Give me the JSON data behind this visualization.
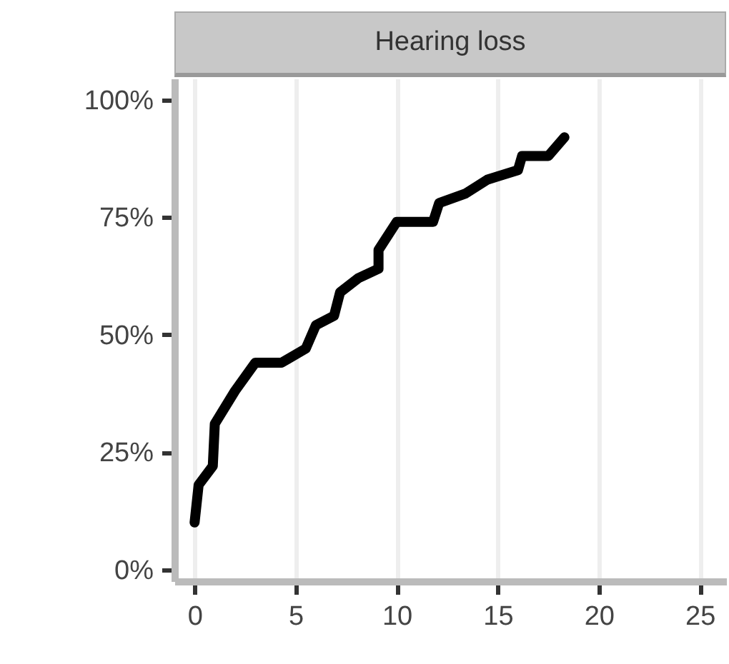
{
  "chart_data": {
    "type": "line",
    "title": "Hearing loss",
    "x": [
      0,
      0.2,
      0.9,
      1.0,
      2.0,
      3.0,
      4.3,
      5.5,
      6.0,
      6.9,
      7.2,
      8.1,
      9.1,
      9.1,
      10.0,
      11.8,
      12.1,
      13.4,
      14.5,
      16.0,
      16.2,
      17.5,
      18.3
    ],
    "series": [
      {
        "color": "#000000",
        "values": [
          10,
          18,
          22,
          31,
          38,
          44,
          44,
          47,
          52,
          54,
          59,
          62,
          64,
          68,
          74,
          74,
          78,
          80,
          83,
          85,
          88,
          88,
          92
        ]
      }
    ],
    "xlim": [
      -1,
      26.3
    ],
    "xticks": [
      0,
      5,
      10,
      15,
      20,
      25
    ],
    "ylim": [
      -2.5,
      104.5
    ],
    "yticks": [
      {
        "value": 0,
        "label": "0%"
      },
      {
        "value": 25,
        "label": "25%"
      },
      {
        "value": 50,
        "label": "50%"
      },
      {
        "value": 75,
        "label": "75%"
      },
      {
        "value": 100,
        "label": "100%"
      }
    ],
    "grid": "x",
    "line_style": "solid"
  }
}
